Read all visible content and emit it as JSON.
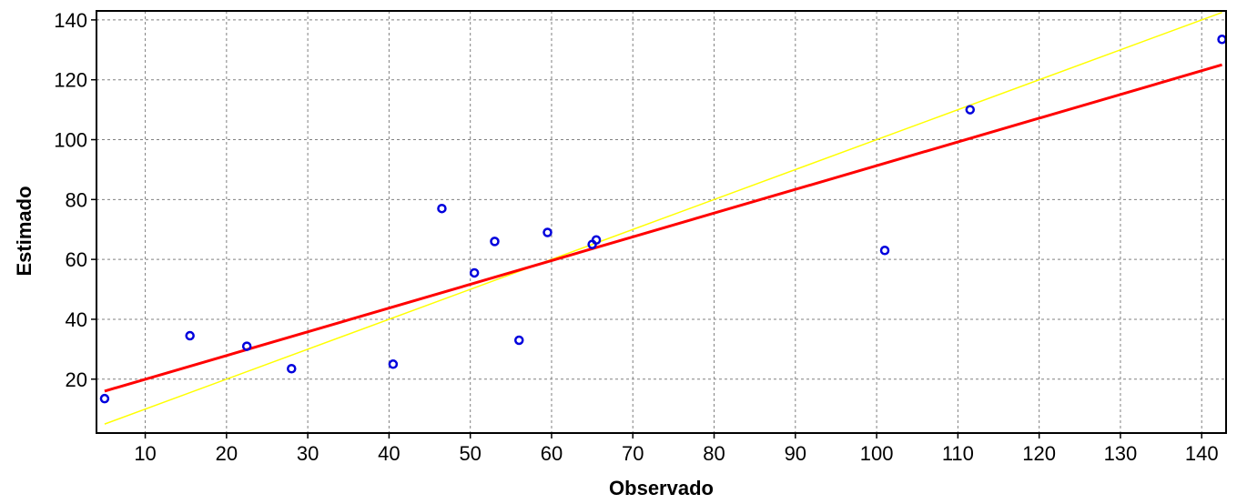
{
  "chart_data": {
    "type": "scatter",
    "xlabel": "Observado",
    "ylabel": "Estimado",
    "xlim": [
      4,
      143
    ],
    "ylim": [
      2,
      143
    ],
    "x_ticks": [
      10,
      20,
      30,
      40,
      50,
      60,
      70,
      80,
      90,
      100,
      110,
      120,
      130,
      140
    ],
    "y_ticks": [
      20,
      40,
      60,
      80,
      100,
      120,
      140
    ],
    "grid": true,
    "points": [
      {
        "x": 5.0,
        "y": 13.5
      },
      {
        "x": 15.5,
        "y": 34.5
      },
      {
        "x": 22.5,
        "y": 31.0
      },
      {
        "x": 28.0,
        "y": 23.5
      },
      {
        "x": 40.5,
        "y": 25.0
      },
      {
        "x": 46.5,
        "y": 77.0
      },
      {
        "x": 50.5,
        "y": 55.5
      },
      {
        "x": 53.0,
        "y": 66.0
      },
      {
        "x": 56.0,
        "y": 33.0
      },
      {
        "x": 59.5,
        "y": 69.0
      },
      {
        "x": 65.0,
        "y": 65.0
      },
      {
        "x": 65.5,
        "y": 66.5
      },
      {
        "x": 101.0,
        "y": 63.0
      },
      {
        "x": 111.5,
        "y": 110.0
      },
      {
        "x": 142.5,
        "y": 133.5
      }
    ],
    "lines": [
      {
        "kind": "regression",
        "color": "#ff0000",
        "x": [
          5,
          142.5
        ],
        "y": [
          16,
          125
        ]
      },
      {
        "kind": "identity",
        "color": "#ffff00",
        "x": [
          5,
          142.5
        ],
        "y": [
          5,
          142.5
        ]
      }
    ],
    "colors": {
      "points": "#0000dd",
      "grid": "#808080",
      "axis": "#000000"
    }
  }
}
